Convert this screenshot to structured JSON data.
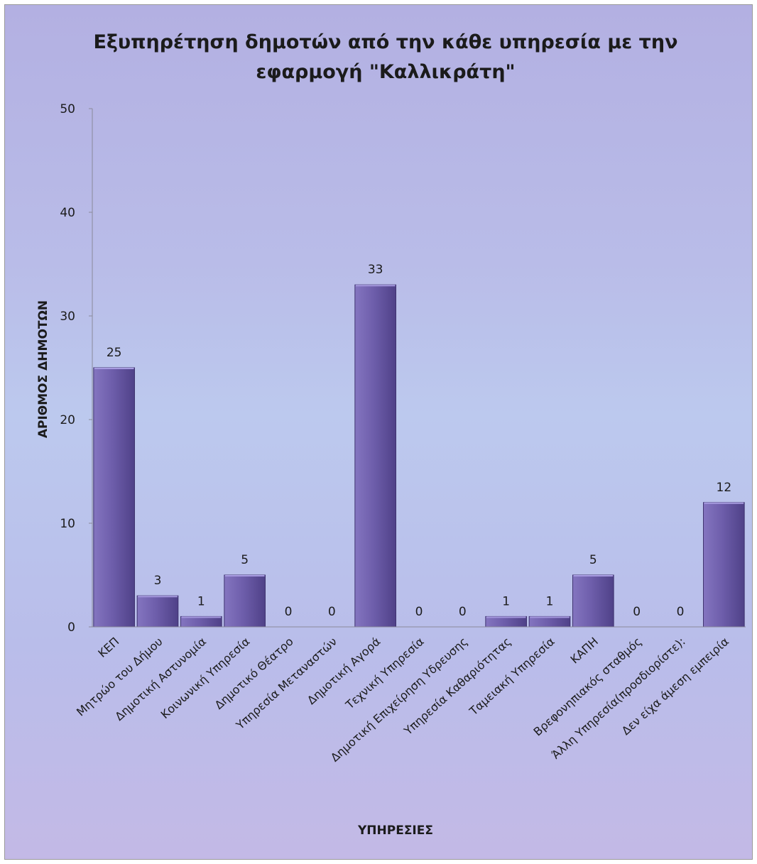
{
  "chart_data": {
    "type": "bar",
    "title_lines": [
      "Εξυπηρέτηση δημοτών από την κάθε υπηρεσία με την",
      "εφαρμογή \"Καλλικράτη\""
    ],
    "xlabel": "ΥΠΗΡΕΣΙΕΣ",
    "ylabel": "ΑΡΙΘΜΟΣ ΔΗΜΟΤΩΝ",
    "ylim": [
      0,
      50
    ],
    "yticks": [
      0,
      10,
      20,
      30,
      40,
      50
    ],
    "categories": [
      "ΚΕΠ",
      "Μητρώο του Δήμου",
      "Δημοτική Αστυνομία",
      "Κοινωνική Υπηρεσία",
      "Δημοτικό Θέατρο",
      "Υπηρεσία Μεταναστών",
      "Δημοτική Αγορά",
      "Τεχνική Υπηρεσία",
      "Δημοτική Επιχείρηση Υδρευσης",
      "Υπηρεσία Καθαριότητας",
      "Ταμειακή Υπηρεσία",
      "ΚΑΠΗ",
      "Βρεφονηπιακός σταθμός",
      "Άλλη Υπηρεσία(προσδιορίστε):",
      "Δεν είχα άμεση εμπειρία"
    ],
    "values": [
      25,
      3,
      1,
      5,
      0,
      0,
      33,
      0,
      0,
      1,
      1,
      5,
      0,
      0,
      12
    ],
    "grid": false,
    "legend": "none",
    "bar_color": "#6a5aa6"
  }
}
